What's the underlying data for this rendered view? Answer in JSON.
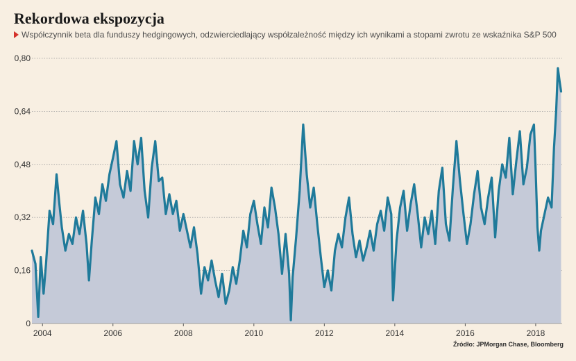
{
  "title": "Rekordowa ekspozycja",
  "subtitle": "Współczynnik beta dla funduszy hedgingowych, odzwierciedlający współzależność między ich wynikami a stopami zwrotu ze wskaźnika S&P 500",
  "source": "Źródło: JPMorgan Chase, Bloomberg",
  "colors": {
    "line": "#1f7a9a",
    "area": "#c5cad8",
    "grid": "#9e9e9e",
    "accent": "#d4312a"
  },
  "chart_data": {
    "type": "area",
    "title": "Rekordowa ekspozycja",
    "xlabel": "",
    "ylabel": "",
    "xlim": [
      2003.7,
      2018.75
    ],
    "ylim": [
      0,
      0.8
    ],
    "y_ticks": [
      0,
      0.16,
      0.32,
      0.48,
      0.64,
      0.8
    ],
    "y_tick_labels": [
      "0",
      "0,16",
      "0,32",
      "0,48",
      "0,64",
      "0,80"
    ],
    "x_ticks": [
      2004,
      2006,
      2008,
      2010,
      2012,
      2014,
      2016,
      2018
    ],
    "x_tick_labels": [
      "2004",
      "2006",
      "2008",
      "2010",
      "2012",
      "2014",
      "2016",
      "2018"
    ],
    "grid": "horizontal-dotted",
    "series": [
      {
        "values": [
          [
            2003.7,
            0.22
          ],
          [
            2003.8,
            0.18
          ],
          [
            2003.88,
            0.02
          ],
          [
            2003.95,
            0.2
          ],
          [
            2004.03,
            0.09
          ],
          [
            2004.1,
            0.18
          ],
          [
            2004.2,
            0.34
          ],
          [
            2004.3,
            0.3
          ],
          [
            2004.4,
            0.45
          ],
          [
            2004.48,
            0.36
          ],
          [
            2004.55,
            0.29
          ],
          [
            2004.65,
            0.22
          ],
          [
            2004.75,
            0.27
          ],
          [
            2004.85,
            0.24
          ],
          [
            2004.95,
            0.32
          ],
          [
            2005.05,
            0.27
          ],
          [
            2005.15,
            0.34
          ],
          [
            2005.25,
            0.24
          ],
          [
            2005.32,
            0.13
          ],
          [
            2005.4,
            0.25
          ],
          [
            2005.5,
            0.38
          ],
          [
            2005.6,
            0.33
          ],
          [
            2005.7,
            0.42
          ],
          [
            2005.8,
            0.37
          ],
          [
            2005.9,
            0.45
          ],
          [
            2006.0,
            0.5
          ],
          [
            2006.1,
            0.55
          ],
          [
            2006.2,
            0.42
          ],
          [
            2006.3,
            0.38
          ],
          [
            2006.4,
            0.46
          ],
          [
            2006.5,
            0.4
          ],
          [
            2006.6,
            0.55
          ],
          [
            2006.7,
            0.48
          ],
          [
            2006.8,
            0.56
          ],
          [
            2006.9,
            0.4
          ],
          [
            2007.0,
            0.32
          ],
          [
            2007.1,
            0.47
          ],
          [
            2007.2,
            0.55
          ],
          [
            2007.3,
            0.43
          ],
          [
            2007.4,
            0.44
          ],
          [
            2007.5,
            0.33
          ],
          [
            2007.6,
            0.39
          ],
          [
            2007.7,
            0.33
          ],
          [
            2007.8,
            0.37
          ],
          [
            2007.9,
            0.28
          ],
          [
            2008.0,
            0.33
          ],
          [
            2008.1,
            0.28
          ],
          [
            2008.2,
            0.23
          ],
          [
            2008.3,
            0.29
          ],
          [
            2008.4,
            0.21
          ],
          [
            2008.5,
            0.09
          ],
          [
            2008.6,
            0.17
          ],
          [
            2008.7,
            0.13
          ],
          [
            2008.8,
            0.19
          ],
          [
            2008.9,
            0.13
          ],
          [
            2009.0,
            0.08
          ],
          [
            2009.1,
            0.15
          ],
          [
            2009.2,
            0.06
          ],
          [
            2009.3,
            0.1
          ],
          [
            2009.4,
            0.17
          ],
          [
            2009.5,
            0.12
          ],
          [
            2009.6,
            0.19
          ],
          [
            2009.7,
            0.28
          ],
          [
            2009.8,
            0.23
          ],
          [
            2009.9,
            0.33
          ],
          [
            2010.0,
            0.37
          ],
          [
            2010.1,
            0.3
          ],
          [
            2010.2,
            0.24
          ],
          [
            2010.3,
            0.35
          ],
          [
            2010.4,
            0.29
          ],
          [
            2010.5,
            0.41
          ],
          [
            2010.6,
            0.35
          ],
          [
            2010.7,
            0.27
          ],
          [
            2010.8,
            0.15
          ],
          [
            2010.9,
            0.27
          ],
          [
            2011.0,
            0.15
          ],
          [
            2011.05,
            0.01
          ],
          [
            2011.1,
            0.14
          ],
          [
            2011.2,
            0.26
          ],
          [
            2011.3,
            0.4
          ],
          [
            2011.4,
            0.6
          ],
          [
            2011.5,
            0.45
          ],
          [
            2011.6,
            0.35
          ],
          [
            2011.7,
            0.41
          ],
          [
            2011.8,
            0.3
          ],
          [
            2011.9,
            0.2
          ],
          [
            2012.0,
            0.11
          ],
          [
            2012.1,
            0.16
          ],
          [
            2012.2,
            0.1
          ],
          [
            2012.3,
            0.22
          ],
          [
            2012.4,
            0.27
          ],
          [
            2012.5,
            0.23
          ],
          [
            2012.6,
            0.32
          ],
          [
            2012.7,
            0.38
          ],
          [
            2012.8,
            0.27
          ],
          [
            2012.9,
            0.2
          ],
          [
            2013.0,
            0.25
          ],
          [
            2013.1,
            0.19
          ],
          [
            2013.2,
            0.23
          ],
          [
            2013.3,
            0.28
          ],
          [
            2013.4,
            0.22
          ],
          [
            2013.5,
            0.3
          ],
          [
            2013.6,
            0.34
          ],
          [
            2013.7,
            0.28
          ],
          [
            2013.8,
            0.38
          ],
          [
            2013.9,
            0.33
          ],
          [
            2013.95,
            0.07
          ],
          [
            2014.05,
            0.25
          ],
          [
            2014.15,
            0.35
          ],
          [
            2014.25,
            0.4
          ],
          [
            2014.35,
            0.28
          ],
          [
            2014.45,
            0.36
          ],
          [
            2014.55,
            0.42
          ],
          [
            2014.65,
            0.33
          ],
          [
            2014.75,
            0.23
          ],
          [
            2014.85,
            0.32
          ],
          [
            2014.95,
            0.27
          ],
          [
            2015.05,
            0.34
          ],
          [
            2015.15,
            0.24
          ],
          [
            2015.25,
            0.4
          ],
          [
            2015.35,
            0.47
          ],
          [
            2015.45,
            0.3
          ],
          [
            2015.55,
            0.25
          ],
          [
            2015.65,
            0.41
          ],
          [
            2015.75,
            0.55
          ],
          [
            2015.85,
            0.43
          ],
          [
            2015.95,
            0.33
          ],
          [
            2016.05,
            0.24
          ],
          [
            2016.15,
            0.3
          ],
          [
            2016.25,
            0.39
          ],
          [
            2016.35,
            0.46
          ],
          [
            2016.45,
            0.35
          ],
          [
            2016.55,
            0.3
          ],
          [
            2016.65,
            0.38
          ],
          [
            2016.75,
            0.44
          ],
          [
            2016.85,
            0.26
          ],
          [
            2016.95,
            0.4
          ],
          [
            2017.05,
            0.48
          ],
          [
            2017.15,
            0.44
          ],
          [
            2017.25,
            0.56
          ],
          [
            2017.35,
            0.39
          ],
          [
            2017.45,
            0.49
          ],
          [
            2017.55,
            0.58
          ],
          [
            2017.65,
            0.42
          ],
          [
            2017.75,
            0.47
          ],
          [
            2017.85,
            0.57
          ],
          [
            2017.95,
            0.6
          ],
          [
            2018.0,
            0.46
          ],
          [
            2018.05,
            0.29
          ],
          [
            2018.1,
            0.22
          ],
          [
            2018.15,
            0.28
          ],
          [
            2018.25,
            0.33
          ],
          [
            2018.35,
            0.38
          ],
          [
            2018.45,
            0.35
          ],
          [
            2018.52,
            0.53
          ],
          [
            2018.58,
            0.64
          ],
          [
            2018.63,
            0.77
          ],
          [
            2018.68,
            0.73
          ],
          [
            2018.72,
            0.7
          ]
        ]
      }
    ]
  }
}
